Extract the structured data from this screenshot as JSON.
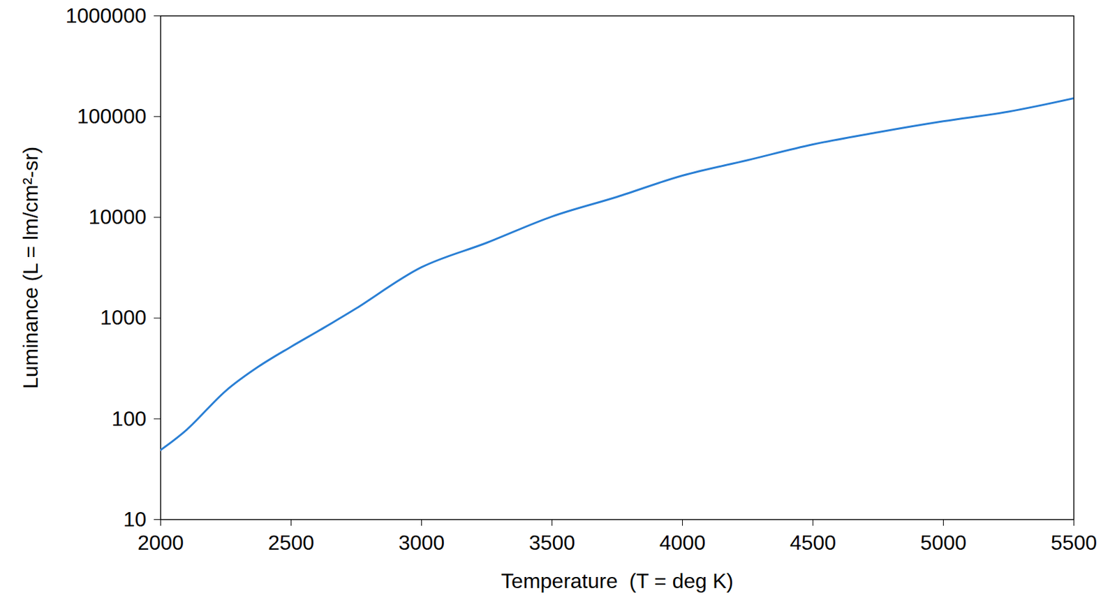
{
  "chart_data": {
    "type": "line",
    "x_label": "Temperature  (T = deg K)",
    "y_label": "Luminance (L = lm/cm²-sr)",
    "x": [
      2000,
      2100,
      2250,
      2375,
      2500,
      2625,
      2750,
      3000,
      3250,
      3500,
      3750,
      4000,
      4250,
      4500,
      4750,
      5000,
      5250,
      5500
    ],
    "values": [
      49,
      78,
      190,
      330,
      520,
      800,
      1250,
      3200,
      5600,
      10200,
      16000,
      26000,
      37000,
      53000,
      70000,
      90000,
      112000,
      152000
    ],
    "color": "#2a7fd4",
    "xlim": [
      2000,
      5500
    ],
    "ylim": [
      10,
      1000000
    ],
    "xticks": [
      2000,
      2500,
      3000,
      3500,
      4000,
      4500,
      5000,
      5500
    ],
    "yticks": [
      10,
      100,
      1000,
      10000,
      100000,
      1000000
    ],
    "log": "y",
    "grid": false
  }
}
